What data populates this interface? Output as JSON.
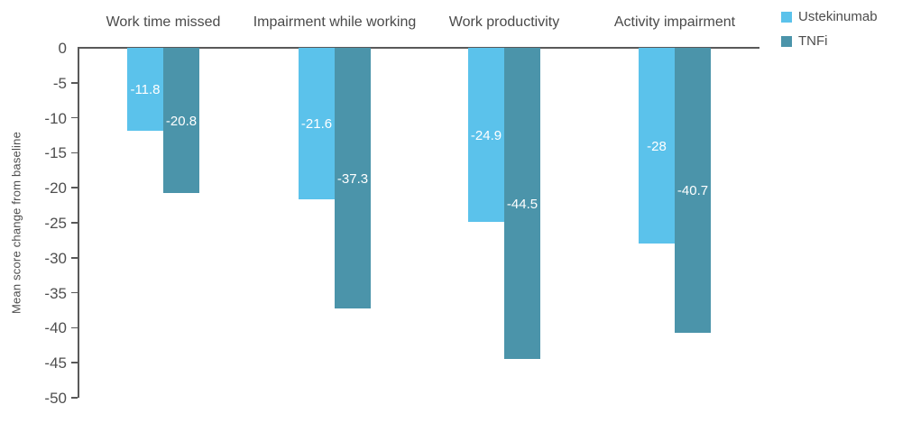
{
  "chart_data": {
    "type": "bar",
    "title": "",
    "categories": [
      "Work time missed",
      "Impairment while working",
      "Work productivity",
      "Activity impairment"
    ],
    "series": [
      {
        "name": "Ustekinumab",
        "color": "#5BC2EB",
        "values": [
          -11.8,
          -21.6,
          -24.9,
          -28
        ]
      },
      {
        "name": "TNFi",
        "color": "#4B94AA",
        "values": [
          -20.8,
          -37.3,
          -44.5,
          -40.7
        ]
      }
    ],
    "data_labels": [
      [
        "-11.8",
        "-21.6",
        "-24.9",
        "-28"
      ],
      [
        "-20.8",
        "-37.3",
        "-44.5",
        "-40.7"
      ]
    ],
    "xlabel": "",
    "ylabel": "Mean score change from baseline",
    "ylim": [
      0,
      -50
    ],
    "yticks": [
      "0",
      "-5",
      "-10",
      "-15",
      "-20",
      "-25",
      "-30",
      "-35",
      "-40",
      "-45",
      "-50"
    ],
    "legend_position": "top-right",
    "legend_labels": [
      "Ustekinumab",
      "TNFi"
    ],
    "grid": false,
    "bar_label_color": "#ffffff",
    "axis_color": "#595959",
    "text_color": "#4a4a4a"
  }
}
